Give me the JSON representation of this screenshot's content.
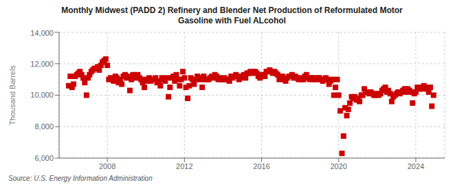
{
  "chart_data": {
    "type": "scatter",
    "title": "Monthly Midwest (PADD 2) Refinery and Blender Net Production of Reformulated Motor\nGasoline with Fuel ALcohol",
    "y_label": "Thousand Barrels",
    "annotations": [
      "Source: U.S. Energy Information Administration"
    ],
    "color": "#cc0000",
    "marker": "square",
    "grid": true,
    "xlim": [
      2005.5,
      2025.5
    ],
    "xticks": [
      2008,
      2012,
      2016,
      2020,
      2024
    ],
    "ylim": [
      6000,
      14000
    ],
    "yticks": [
      {
        "value": 6000,
        "label": "6,000"
      },
      {
        "value": 8000,
        "label": "8,000"
      },
      {
        "value": 10000,
        "label": "10,000"
      },
      {
        "value": 12000,
        "label": "12,000"
      },
      {
        "value": 14000,
        "label": "14,000"
      }
    ],
    "x": [
      2006.0,
      2006.08,
      2006.17,
      2006.25,
      2006.33,
      2006.42,
      2006.5,
      2006.58,
      2006.67,
      2006.75,
      2006.83,
      2006.92,
      2007.0,
      2007.08,
      2007.17,
      2007.25,
      2007.33,
      2007.42,
      2007.5,
      2007.58,
      2007.67,
      2007.75,
      2007.83,
      2007.92,
      2008.0,
      2008.08,
      2008.17,
      2008.25,
      2008.33,
      2008.42,
      2008.5,
      2008.58,
      2008.67,
      2008.75,
      2008.83,
      2008.92,
      2009.0,
      2009.08,
      2009.17,
      2009.25,
      2009.33,
      2009.42,
      2009.5,
      2009.58,
      2009.67,
      2009.75,
      2009.83,
      2009.92,
      2010.0,
      2010.08,
      2010.17,
      2010.25,
      2010.33,
      2010.42,
      2010.5,
      2010.58,
      2010.67,
      2010.75,
      2010.83,
      2010.92,
      2011.0,
      2011.08,
      2011.17,
      2011.25,
      2011.33,
      2011.42,
      2011.5,
      2011.58,
      2011.67,
      2011.75,
      2011.83,
      2011.92,
      2012.0,
      2012.08,
      2012.17,
      2012.25,
      2012.33,
      2012.42,
      2012.5,
      2012.58,
      2012.67,
      2012.75,
      2012.83,
      2012.92,
      2013.0,
      2013.08,
      2013.17,
      2013.25,
      2013.33,
      2013.42,
      2013.5,
      2013.58,
      2013.67,
      2013.75,
      2013.83,
      2013.92,
      2014.0,
      2014.08,
      2014.17,
      2014.25,
      2014.33,
      2014.42,
      2014.5,
      2014.58,
      2014.67,
      2014.75,
      2014.83,
      2014.92,
      2015.0,
      2015.08,
      2015.17,
      2015.25,
      2015.33,
      2015.42,
      2015.5,
      2015.58,
      2015.67,
      2015.75,
      2015.83,
      2015.92,
      2016.0,
      2016.08,
      2016.17,
      2016.25,
      2016.33,
      2016.42,
      2016.5,
      2016.58,
      2016.67,
      2016.75,
      2016.83,
      2016.92,
      2017.0,
      2017.08,
      2017.17,
      2017.25,
      2017.33,
      2017.42,
      2017.5,
      2017.58,
      2017.67,
      2017.75,
      2017.83,
      2017.92,
      2018.0,
      2018.08,
      2018.17,
      2018.25,
      2018.33,
      2018.42,
      2018.5,
      2018.58,
      2018.67,
      2018.75,
      2018.83,
      2018.92,
      2019.0,
      2019.08,
      2019.17,
      2019.25,
      2019.33,
      2019.42,
      2019.5,
      2019.58,
      2019.67,
      2019.75,
      2019.83,
      2019.92,
      2020.0,
      2020.08,
      2020.17,
      2020.25,
      2020.33,
      2020.42,
      2020.5,
      2020.58,
      2020.67,
      2020.75,
      2020.83,
      2020.92,
      2021.0,
      2021.08,
      2021.17,
      2021.25,
      2021.33,
      2021.42,
      2021.5,
      2021.58,
      2021.67,
      2021.75,
      2021.83,
      2021.92,
      2022.0,
      2022.08,
      2022.17,
      2022.25,
      2022.33,
      2022.42,
      2022.5,
      2022.58,
      2022.67,
      2022.75,
      2022.83,
      2022.92,
      2023.0,
      2023.08,
      2023.17,
      2023.25,
      2023.33,
      2023.42,
      2023.5,
      2023.58,
      2023.67,
      2023.75,
      2023.83,
      2023.92,
      2024.0,
      2024.08,
      2024.17,
      2024.25,
      2024.33,
      2024.42,
      2024.5,
      2024.58,
      2024.67,
      2024.75,
      2024.83,
      2024.92
    ],
    "values": [
      10600,
      11200,
      10500,
      10700,
      11200,
      11300,
      11400,
      11500,
      11300,
      11100,
      10800,
      10000,
      11100,
      11300,
      11500,
      11600,
      11700,
      11700,
      11800,
      11600,
      11900,
      12100,
      12200,
      12300,
      11900,
      11000,
      11100,
      11000,
      10900,
      11200,
      11100,
      10800,
      11000,
      10700,
      11200,
      11300,
      11100,
      11200,
      10300,
      11000,
      11300,
      11100,
      11200,
      11300,
      11100,
      11000,
      10800,
      10500,
      11000,
      10900,
      11100,
      10900,
      11000,
      11000,
      11100,
      10800,
      10900,
      10600,
      11100,
      11000,
      10900,
      11100,
      9900,
      10500,
      11100,
      11200,
      10900,
      11300,
      11000,
      10600,
      11000,
      11500,
      11100,
      10500,
      9800,
      10600,
      11100,
      11000,
      10700,
      11000,
      11200,
      11100,
      11000,
      10500,
      11200,
      11000,
      11000,
      11000,
      11100,
      11200,
      11100,
      11300,
      11200,
      11000,
      11100,
      11000,
      11000,
      11100,
      11000,
      11000,
      10900,
      11200,
      11100,
      11200,
      11300,
      11200,
      11000,
      11100,
      11200,
      11300,
      11100,
      11400,
      11400,
      11500,
      11400,
      11500,
      11500,
      11400,
      11200,
      11100,
      11300,
      11300,
      11200,
      11500,
      11500,
      11600,
      11500,
      11400,
      11500,
      11400,
      11300,
      11000,
      11200,
      11200,
      11000,
      10900,
      11100,
      11200,
      11200,
      11300,
      11100,
      11200,
      11100,
      11000,
      11100,
      11000,
      11000,
      11200,
      11300,
      11100,
      11000,
      11100,
      11100,
      11000,
      11000,
      11100,
      11100,
      11000,
      10900,
      11000,
      11100,
      11000,
      10700,
      10900,
      11000,
      10000,
      10500,
      11000,
      10000,
      9000,
      6300,
      7400,
      9200,
      8700,
      9100,
      9500,
      9900,
      9800,
      9900,
      9700,
      9800,
      9600,
      10000,
      10000,
      10400,
      10200,
      10200,
      10100,
      10200,
      10100,
      10000,
      10000,
      10100,
      10000,
      10100,
      10300,
      10400,
      10500,
      10200,
      10300,
      10100,
      9600,
      9900,
      10000,
      10100,
      10200,
      10100,
      10200,
      10300,
      10400,
      10200,
      10400,
      10300,
      10200,
      9500,
      10100,
      10200,
      10500,
      10400,
      10500,
      10400,
      10600,
      10500,
      10400,
      10200,
      10500,
      9300,
      10000
    ]
  }
}
